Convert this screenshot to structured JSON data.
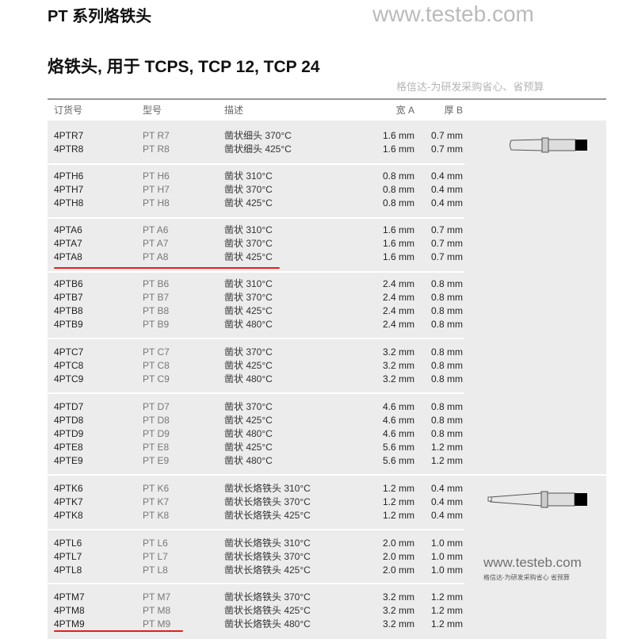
{
  "title": "PT 系列烙铁头",
  "subtitle": "烙铁头, 用于 TCPS, TCP 12, TCP 24",
  "headers": {
    "order": "订货号",
    "model": "型号",
    "desc": "描述",
    "width": "宽 A",
    "thick": "厚 B"
  },
  "groups": [
    {
      "rows": [
        [
          "4PTR7",
          "PT R7",
          "凿状细头 370°C",
          "1.6 mm",
          "0.7 mm"
        ],
        [
          "4PTR8",
          "PT R8",
          "凿状细头 425°C",
          "1.6 mm",
          "0.7 mm"
        ]
      ]
    },
    {
      "rows": [
        [
          "4PTH6",
          "PT H6",
          "凿状 310°C",
          "0.8 mm",
          "0.4 mm"
        ],
        [
          "4PTH7",
          "PT H7",
          "凿状 370°C",
          "0.8 mm",
          "0.4 mm"
        ],
        [
          "4PTH8",
          "PT H8",
          "凿状 425°C",
          "0.8 mm",
          "0.4 mm"
        ]
      ]
    },
    {
      "rows": [
        [
          "4PTA6",
          "PT A6",
          "凿状 310°C",
          "1.6 mm",
          "0.7 mm"
        ],
        [
          "4PTA7",
          "PT A7",
          "凿状 370°C",
          "1.6 mm",
          "0.7 mm"
        ],
        [
          "4PTA8",
          "PT A8",
          "凿状 425°C",
          "1.6 mm",
          "0.7 mm"
        ]
      ]
    },
    {
      "rows": [
        [
          "4PTB6",
          "PT B6",
          "凿状 310°C",
          "2.4 mm",
          "0.8 mm"
        ],
        [
          "4PTB7",
          "PT B7",
          "凿状 370°C",
          "2.4 mm",
          "0.8 mm"
        ],
        [
          "4PTB8",
          "PT B8",
          "凿状 425°C",
          "2.4 mm",
          "0.8 mm"
        ],
        [
          "4PTB9",
          "PT B9",
          "凿状 480°C",
          "2.4 mm",
          "0.8 mm"
        ]
      ]
    },
    {
      "rows": [
        [
          "4PTC7",
          "PT C7",
          "凿状 370°C",
          "3.2 mm",
          "0.8 mm"
        ],
        [
          "4PTC8",
          "PT C8",
          "凿状 425°C",
          "3.2 mm",
          "0.8 mm"
        ],
        [
          "4PTC9",
          "PT C9",
          "凿状 480°C",
          "3.2 mm",
          "0.8 mm"
        ]
      ]
    },
    {
      "rows": [
        [
          "4PTD7",
          "PT D7",
          "凿状 370°C",
          "4.6 mm",
          "0.8 mm"
        ],
        [
          "4PTD8",
          "PT D8",
          "凿状 425°C",
          "4.6 mm",
          "0.8 mm"
        ],
        [
          "4PTD9",
          "PT D9",
          "凿状 480°C",
          "4.6 mm",
          "0.8 mm"
        ],
        [
          "4PTE8",
          "PT E8",
          "凿状 425°C",
          "5.6 mm",
          "1.2 mm"
        ],
        [
          "4PTE9",
          "PT E9",
          "凿状 480°C",
          "5.6 mm",
          "1.2 mm"
        ]
      ]
    },
    {
      "rows": [
        [
          "4PTK6",
          "PT K6",
          "凿状长烙铁头 310°C",
          "1.2 mm",
          "0.4 mm"
        ],
        [
          "4PTK7",
          "PT K7",
          "凿状长烙铁头 370°C",
          "1.2 mm",
          "0.4 mm"
        ],
        [
          "4PTK8",
          "PT K8",
          "凿状长烙铁头 425°C",
          "1.2 mm",
          "0.4 mm"
        ]
      ]
    },
    {
      "rows": [
        [
          "4PTL6",
          "PT L6",
          "凿状长烙铁头 310°C",
          "2.0 mm",
          "1.0 mm"
        ],
        [
          "4PTL7",
          "PT L7",
          "凿状长烙铁头 370°C",
          "2.0 mm",
          "1.0 mm"
        ],
        [
          "4PTL8",
          "PT L8",
          "凿状长烙铁头 425°C",
          "2.0 mm",
          "1.0 mm"
        ]
      ]
    },
    {
      "rows": [
        [
          "4PTM7",
          "PT M7",
          "凿状长烙铁头 370°C",
          "3.2 mm",
          "1.2 mm"
        ],
        [
          "4PTM8",
          "PT M8",
          "凿状长烙铁头 425°C",
          "3.2 mm",
          "1.2 mm"
        ],
        [
          "4PTM9",
          "PT M9",
          "凿状长烙铁头 480°C",
          "3.2 mm",
          "1.2 mm"
        ]
      ]
    }
  ],
  "highlighted_rows": [
    "4PTA8",
    "4PTM9"
  ],
  "highlight_color": "#e02020",
  "images": [
    "chisel-tip-icon",
    "long-chisel-tip-icon"
  ],
  "watermark": {
    "url": "www.testeb.com",
    "slogan": "格信达-为研发采购省心、省预算",
    "corner_url": "www.testeb.com",
    "corner_slogan": "格信达-为研发采购省心 省预算"
  }
}
